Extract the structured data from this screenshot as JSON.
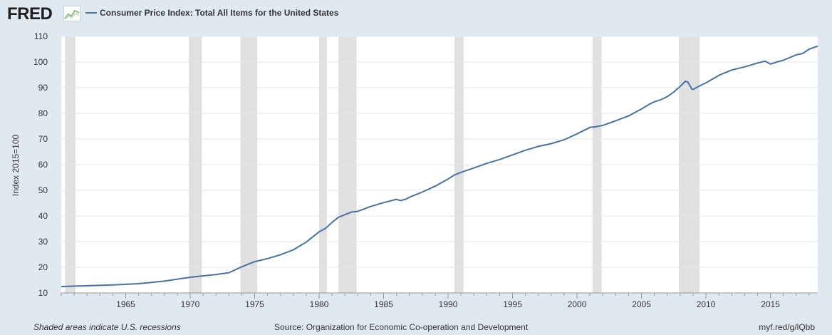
{
  "brand": {
    "logo_text": "FRED"
  },
  "colors": {
    "background": "#e1e9f0",
    "plot_background": "#ffffff",
    "series": "#4572a7",
    "recession_shading": "#e0e0e0",
    "grid": "#e6e6e6"
  },
  "footer": {
    "note": "Shaded areas indicate U.S. recessions",
    "source": "Source: Organization for Economic Co-operation and Development",
    "link": "myf.red/g/lQbb"
  },
  "chart_data": {
    "type": "line",
    "title": "",
    "xlabel": "",
    "ylabel": "Index 2015=100",
    "xlim": [
      1960.0,
      2018.67
    ],
    "ylim": [
      10,
      110
    ],
    "grid": "horizontal",
    "legend_placement": "top-left",
    "y_ticks": [
      10,
      20,
      30,
      40,
      50,
      60,
      70,
      80,
      90,
      100,
      110
    ],
    "x_ticks": [
      1965,
      1970,
      1975,
      1980,
      1985,
      1990,
      1995,
      2000,
      2005,
      2010,
      2015
    ],
    "recessions": [
      [
        1960.3,
        1961.1
      ],
      [
        1969.9,
        1970.9
      ],
      [
        1973.9,
        1975.2
      ],
      [
        1980.0,
        1980.6
      ],
      [
        1981.5,
        1982.9
      ],
      [
        1990.5,
        1991.2
      ],
      [
        2001.2,
        2001.9
      ],
      [
        2007.9,
        2009.5
      ]
    ],
    "series": [
      {
        "name": "Consumer Price Index: Total All Items for the United States",
        "x": [
          1960,
          1962,
          1964,
          1966,
          1968,
          1970,
          1972,
          1973,
          1974,
          1975,
          1976,
          1977,
          1978,
          1979,
          1980,
          1980.5,
          1981,
          1981.5,
          1982,
          1982.5,
          1983,
          1984,
          1985,
          1986,
          1986.3,
          1986.7,
          1987,
          1988,
          1989,
          1990,
          1990.5,
          1991,
          1992,
          1993,
          1994,
          1995,
          1996,
          1997,
          1998,
          1999,
          2000,
          2001,
          2001.5,
          2002,
          2003,
          2004,
          2005,
          2005.7,
          2006,
          2006.5,
          2007,
          2007.5,
          2008,
          2008.4,
          2008.6,
          2008.9,
          2009,
          2009.5,
          2010,
          2011,
          2012,
          2013,
          2014,
          2014.6,
          2015,
          2015.5,
          2016,
          2017,
          2017.5,
          2018,
          2018.67
        ],
        "y": [
          12.5,
          12.8,
          13.1,
          13.6,
          14.6,
          16.1,
          17.2,
          17.9,
          20.2,
          22.2,
          23.4,
          24.9,
          26.8,
          29.8,
          33.8,
          35.2,
          37.5,
          39.5,
          40.5,
          41.5,
          41.8,
          43.7,
          45.2,
          46.5,
          46.0,
          46.5,
          47.3,
          49.3,
          51.6,
          54.4,
          56.0,
          57.0,
          58.7,
          60.5,
          62.0,
          63.8,
          65.6,
          67.1,
          68.2,
          69.7,
          72.0,
          74.5,
          74.8,
          75.3,
          77.1,
          79.0,
          81.7,
          83.8,
          84.5,
          85.3,
          86.5,
          88.3,
          90.5,
          92.5,
          92.2,
          89.5,
          89.3,
          90.7,
          91.9,
          94.8,
          96.9,
          98.1,
          99.6,
          100.3,
          99.2,
          100.0,
          100.7,
          102.8,
          103.3,
          105.0,
          106.2
        ]
      }
    ]
  }
}
